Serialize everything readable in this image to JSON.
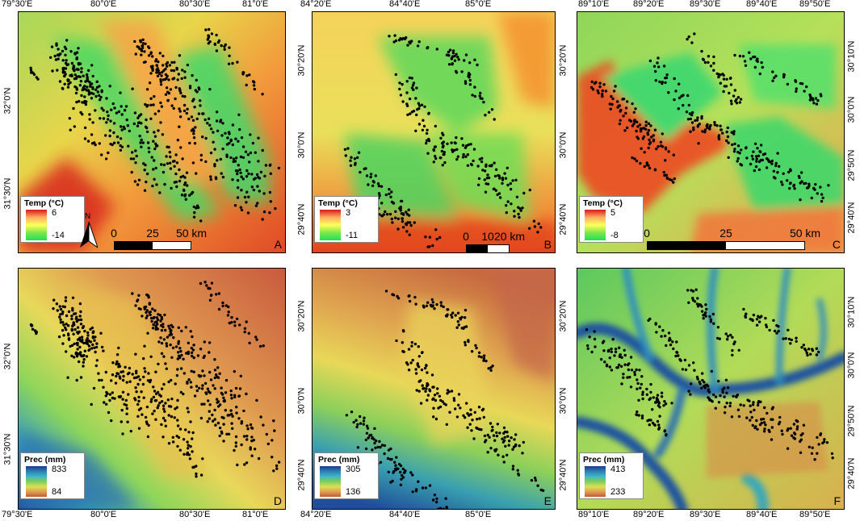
{
  "panels": [
    {
      "id": "A",
      "legend": {
        "title": "Temp (°C)",
        "high": "6",
        "low": "-14",
        "ramp": "temp"
      },
      "scale": {
        "labels": [
          "0",
          "25",
          "50 km"
        ]
      },
      "north": "N"
    },
    {
      "id": "B",
      "legend": {
        "title": "Temp (°C)",
        "high": "3",
        "low": "-11",
        "ramp": "temp"
      },
      "scale": {
        "labels": [
          "0",
          "10",
          "20 km"
        ]
      }
    },
    {
      "id": "C",
      "legend": {
        "title": "Temp (°C)",
        "high": "5",
        "low": "-8",
        "ramp": "temp"
      },
      "scale": {
        "labels": [
          "0",
          "25",
          "50 km"
        ]
      }
    },
    {
      "id": "D",
      "legend": {
        "title": "Prec (mm)",
        "high": "833",
        "low": "84",
        "ramp": "prec"
      }
    },
    {
      "id": "E",
      "legend": {
        "title": "Prec (mm)",
        "high": "305",
        "low": "136",
        "ramp": "prec"
      }
    },
    {
      "id": "F",
      "legend": {
        "title": "Prec (mm)",
        "high": "413",
        "low": "233",
        "ramp": "prec"
      }
    }
  ],
  "axes": {
    "col1_lon": [
      "79°30'E",
      "80°0'E",
      "80°30'E",
      "81°0'E"
    ],
    "col1_lat": [
      "32°0'N",
      "31°30'N"
    ],
    "col2_lon": [
      "84°20'E",
      "84°40'E",
      "85°0'E"
    ],
    "col2_lat": [
      "30°20'N",
      "30°0'N",
      "29°40'N"
    ],
    "col3_lon": [
      "89°10'E",
      "89°20'E",
      "89°30'E",
      "89°40'E",
      "89°50'E"
    ],
    "col3_lat": [
      "30°10'N",
      "30°0'N",
      "29°50'N",
      "29°40'N"
    ],
    "col3_top_lon": [
      "89°10'E",
      "89°20'E",
      "89°30'E",
      "89°40'E",
      "89°50'E"
    ],
    "col1_top_lon": [
      "79°30'E",
      "80°0'E",
      "80°30'E",
      "81°0'E"
    ],
    "col2_top_lon": [
      "84°20'E",
      "84°40'E",
      "85°0'E"
    ]
  },
  "colors": {
    "temp_ramp": [
      "#d7191c",
      "#fdae61",
      "#ffff5a",
      "#7ee84a",
      "#1ee05a"
    ],
    "prec_ramp": [
      "#1a3b8c",
      "#2c7fb8",
      "#41b6c4",
      "#7fcd5a",
      "#d9e05a",
      "#e0a050",
      "#c25a3a"
    ],
    "frame": "#000000",
    "site_dot": "#000000"
  }
}
